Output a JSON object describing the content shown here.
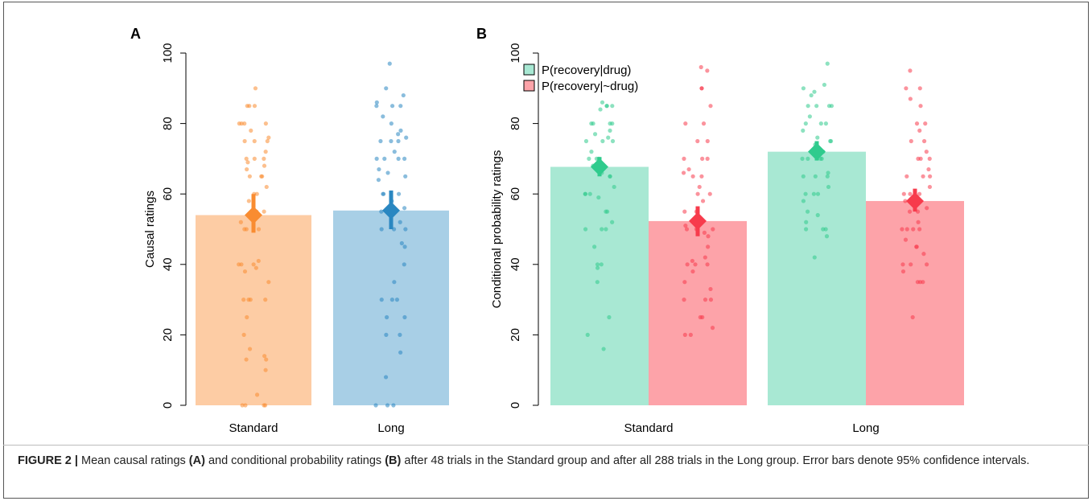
{
  "figure": {
    "caption": {
      "label": "FIGURE 2 |",
      "p1": " Mean causal ratings ",
      "b1": "(A)",
      "p2": " and conditional probability ratings ",
      "b2": "(B)",
      "p3": " after 48 trials in the Standard group and after all 288 trials in the Long group. Error bars denote 95% confidence intervals."
    }
  },
  "chart_data": [
    {
      "panel": "A",
      "type": "bar",
      "ylabel": "Causal ratings",
      "ylim": [
        0,
        100
      ],
      "yticks": [
        "0",
        "20",
        "40",
        "60",
        "80",
        "100"
      ],
      "categories": [
        "Standard",
        "Long"
      ],
      "colors": {
        "bar": [
          "#fdcca4",
          "#a8cfe6"
        ],
        "point": [
          "#f98c31",
          "#2a87c1"
        ]
      },
      "means": [
        54,
        55.3
      ],
      "ci": [
        [
          49,
          60
        ],
        [
          50,
          61
        ]
      ],
      "points": [
        [
          90,
          85,
          85,
          85,
          80,
          80,
          80,
          80,
          78,
          76,
          75,
          75,
          75,
          72,
          70,
          70,
          70,
          69,
          68,
          67,
          65,
          65,
          65,
          62,
          60,
          60,
          58,
          55,
          55,
          52,
          50,
          50,
          50,
          41,
          40,
          40,
          40,
          39,
          38,
          35,
          30,
          30,
          30,
          30,
          25,
          20,
          16,
          14,
          13,
          13,
          10,
          3,
          0,
          0,
          0,
          0
        ],
        [
          97,
          90,
          88,
          86,
          85,
          85,
          85,
          82,
          80,
          78,
          77,
          76,
          75,
          75,
          75,
          72,
          70,
          70,
          70,
          70,
          67,
          66,
          65,
          64,
          60,
          60,
          60,
          58,
          56,
          55,
          52,
          50,
          50,
          50,
          46,
          45,
          40,
          35,
          30,
          30,
          30,
          25,
          25,
          20,
          20,
          15,
          8,
          0,
          0,
          0
        ]
      ]
    },
    {
      "panel": "B",
      "type": "bar",
      "ylabel": "Conditional probability ratings",
      "ylim": [
        0,
        100
      ],
      "yticks": [
        "0",
        "20",
        "40",
        "60",
        "80",
        "100"
      ],
      "categories": [
        "Standard",
        "Long"
      ],
      "legend": {
        "position": "top-left"
      },
      "series": [
        {
          "name": "P(recovery|drug)",
          "bar_color": "#a8e8d3",
          "point_color": "#2fcb8d",
          "means": [
            67.7,
            72
          ],
          "ci": [
            [
              65,
              70.5
            ],
            [
              69.5,
              75
            ]
          ],
          "points": [
            [
              86,
              85,
              85,
              85,
              84,
              80,
              80,
              80,
              80,
              78,
              77,
              76,
              75,
              75,
              75,
              72,
              70,
              70,
              70,
              68,
              66,
              65,
              65,
              62,
              60,
              60,
              60,
              59,
              55,
              55,
              52,
              50,
              50,
              50,
              45,
              40,
              40,
              39,
              35,
              25,
              20,
              16
            ],
            [
              97,
              91,
              90,
              89,
              88,
              85,
              85,
              85,
              85,
              82,
              80,
              80,
              80,
              78,
              76,
              75,
              75,
              74,
              72,
              70,
              70,
              70,
              70,
              66,
              65,
              65,
              65,
              62,
              60,
              60,
              60,
              58,
              55,
              54,
              52,
              50,
              50,
              50,
              48,
              42
            ]
          ]
        },
        {
          "name": "P(recovery|~drug)",
          "bar_color": "#fda3a9",
          "point_color": "#f73b4c",
          "means": [
            52.3,
            58
          ],
          "ci": [
            [
              48,
              56.5
            ],
            [
              55,
              61.5
            ]
          ],
          "points": [
            [
              96,
              95,
              90,
              90,
              85,
              80,
              80,
              75,
              75,
              70,
              70,
              70,
              67,
              66,
              65,
              65,
              62,
              60,
              60,
              58,
              55,
              55,
              52,
              51,
              50,
              50,
              50,
              49,
              48,
              45,
              42,
              41,
              40,
              40,
              40,
              38,
              35,
              33,
              30,
              30,
              30,
              25,
              25,
              22,
              20,
              20
            ],
            [
              95,
              90,
              90,
              87,
              85,
              80,
              80,
              78,
              75,
              75,
              72,
              70,
              70,
              70,
              67,
              65,
              65,
              65,
              62,
              60,
              60,
              60,
              58,
              56,
              55,
              55,
              52,
              50,
              50,
              50,
              50,
              47,
              45,
              45,
              43,
              40,
              40,
              40,
              38,
              35,
              35,
              35,
              25
            ]
          ]
        }
      ]
    }
  ]
}
